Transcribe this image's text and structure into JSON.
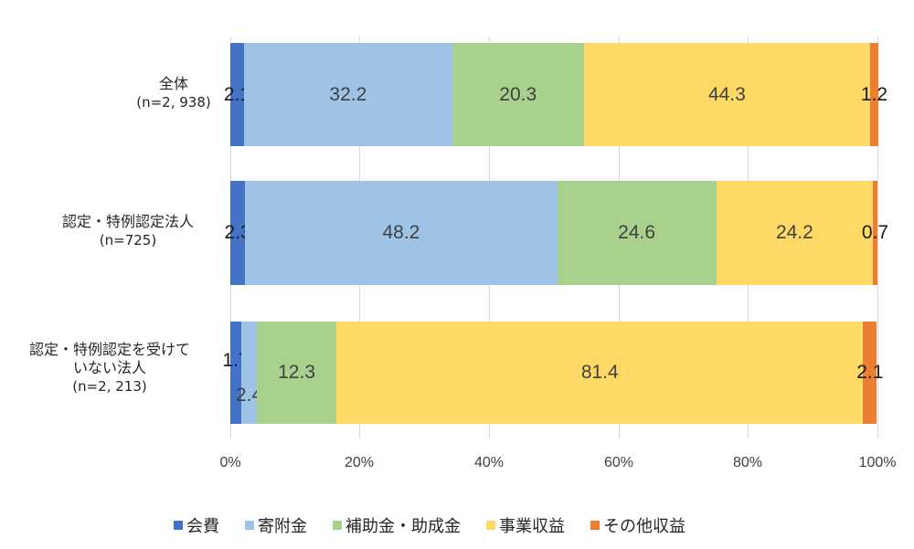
{
  "chart_data": {
    "type": "bar",
    "orientation": "horizontal",
    "stacked": "percent",
    "title": "",
    "xlabel": "",
    "ylabel": "",
    "xlim": [
      0,
      100
    ],
    "grid": true,
    "legend_position": "bottom",
    "x_ticks": [
      "0%",
      "20%",
      "40%",
      "60%",
      "80%",
      "100%"
    ],
    "categories": [
      {
        "name": "全体",
        "n": "(n=2, 938)"
      },
      {
        "name": "認定・特例認定法人",
        "n": "(n=725)"
      },
      {
        "name": "認定・特例認定を受けて\nいない法人",
        "n": "(n=2, 213)"
      }
    ],
    "series": [
      {
        "name": "会費",
        "color": "#4472c4",
        "values": [
          2.1,
          2.3,
          1.7
        ]
      },
      {
        "name": "寄附金",
        "color": "#9dc3e6",
        "values": [
          32.2,
          48.2,
          2.4
        ]
      },
      {
        "name": "補助金・助成金",
        "color": "#a9d18e",
        "values": [
          20.3,
          24.6,
          12.3
        ]
      },
      {
        "name": "事業収益",
        "color": "#ffd966",
        "values": [
          44.3,
          24.2,
          81.4
        ]
      },
      {
        "name": "その他収益",
        "color": "#ed7d31",
        "values": [
          1.2,
          0.7,
          2.1
        ]
      }
    ]
  },
  "rows": [
    {
      "label_line1": "全体",
      "label_line2": "",
      "n": "(n=2, 938)",
      "segments": [
        "2.1",
        "32.2",
        "20.3",
        "44.3",
        "1.2"
      ]
    },
    {
      "label_line1": "認定・特例認定法人",
      "label_line2": "",
      "n": "(n=725)",
      "segments": [
        "2.3",
        "48.2",
        "24.6",
        "24.2",
        "0.7"
      ]
    },
    {
      "label_line1": "認定・特例認定を受けて",
      "label_line2": "いない法人",
      "n": "(n=2, 213)",
      "segments": [
        "1.7",
        "2.4",
        "12.3",
        "81.4",
        "2.1"
      ]
    }
  ],
  "axis": {
    "ticks": [
      "0%",
      "20%",
      "40%",
      "60%",
      "80%",
      "100%"
    ]
  },
  "legend": [
    {
      "label": "会費",
      "color": "#4472c4"
    },
    {
      "label": "寄附金",
      "color": "#9dc3e6"
    },
    {
      "label": "補助金・助成金",
      "color": "#a9d18e"
    },
    {
      "label": "事業収益",
      "color": "#ffd966"
    },
    {
      "label": "その他収益",
      "color": "#ed7d31"
    }
  ]
}
